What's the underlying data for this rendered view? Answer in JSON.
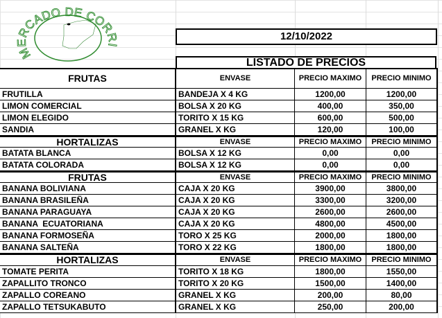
{
  "logo": {
    "text": "MERCADO DE CORRIENTES",
    "color": "#2e8b2e"
  },
  "date": "12/10/2022",
  "title": "LISTADO DE PRECIOS",
  "sections": [
    {
      "title": "FRUTAS",
      "envase": "ENVASE",
      "max": "PRECIO MAXIMO",
      "min": "PRECIO MINIMO",
      "rows": [
        [
          "FRUTILLA",
          "BANDEJA X 4 KG",
          "1200,00",
          "1200,00"
        ],
        [
          "LIMON COMERCIAL",
          "BOLSA X 20 KG",
          "400,00",
          "350,00"
        ],
        [
          "LIMON ELEGIDO",
          "TORITO X 15 KG",
          "600,00",
          "500,00"
        ],
        [
          "SANDIA",
          "GRANEL X KG",
          "120,00",
          "100,00"
        ]
      ]
    },
    {
      "title": "HORTALIZAS",
      "envase": "ENVASE",
      "max": "PRECIO MAXIMO",
      "min": "PRECIO MINIMO",
      "rows": [
        [
          "BATATA BLANCA",
          "BOLSA X 12 KG",
          "0,00",
          "0,00"
        ],
        [
          "BATATA COLORADA",
          "BOLSA X 12 KG",
          "0,00",
          "0,00"
        ]
      ]
    },
    {
      "title": "FRUTAS",
      "envase": "ENVASE",
      "max": "PRECIO MAXIMO",
      "min": "PRECIO MINIMO",
      "rows": [
        [
          "BANANA BOLIVIANA",
          "CAJA X 20 KG",
          "3900,00",
          "3800,00"
        ],
        [
          "BANANA BRASILEÑA",
          "CAJA X 20 KG",
          "3300,00",
          "3200,00"
        ],
        [
          "BANANA PARAGUAYA",
          "CAJA X 20 KG",
          "2600,00",
          "2600,00"
        ],
        [
          "BANANA  ECUATORIANA",
          "CAJA X 20 KG",
          "4800,00",
          "4500,00"
        ],
        [
          "BANANA FORMOSEÑA",
          "TORO X 25 KG",
          "2000,00",
          "1800,00"
        ],
        [
          "BANANA SALTEÑA",
          "TORO X 22 KG",
          "1800,00",
          "1800,00"
        ]
      ]
    },
    {
      "title": "HORTALIZAS",
      "envase": "ENVASE",
      "max": "PRECIO MAXIMO",
      "min": "PRECIO MINIMO",
      "rows": [
        [
          "TOMATE PERITA",
          "TORITO X 18 KG",
          "1800,00",
          "1550,00"
        ],
        [
          "ZAPALLITO TRONCO",
          "TORITO X 20 KG",
          "1500,00",
          "1400,00"
        ],
        [
          "ZAPALLO COREANO",
          "GRANEL X KG",
          "200,00",
          "80,00"
        ],
        [
          "ZAPALLO TETSUKABUTO",
          "GRANEL X KG",
          "250,00",
          "200,00"
        ]
      ]
    }
  ]
}
